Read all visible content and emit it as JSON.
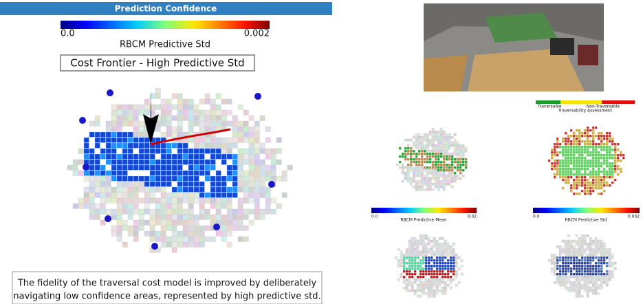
{
  "main": {
    "banner": "Prediction Confidence",
    "colorbar": {
      "min": "0.0",
      "max": "0.002",
      "label": "RBCM Predictive Std"
    },
    "frontier_label": "Cost Frontier - High Predictive Std",
    "caption": [
      "The fidelity of the traversal cost model is improved by deliberately",
      "navigating low confidence areas, represented by high predictive std."
    ]
  },
  "panels": {
    "traversability": {
      "low": "Traversable",
      "high": "Non-Traversable",
      "title": "Traversability Assessment"
    },
    "mean_colorbar": {
      "min": "0.0",
      "max": "0.02",
      "label": "RBCM Predictive Mean"
    },
    "std_colorbar": {
      "min": "0.0",
      "max": "0.002",
      "label": "RBCM Predictive Std"
    }
  }
}
